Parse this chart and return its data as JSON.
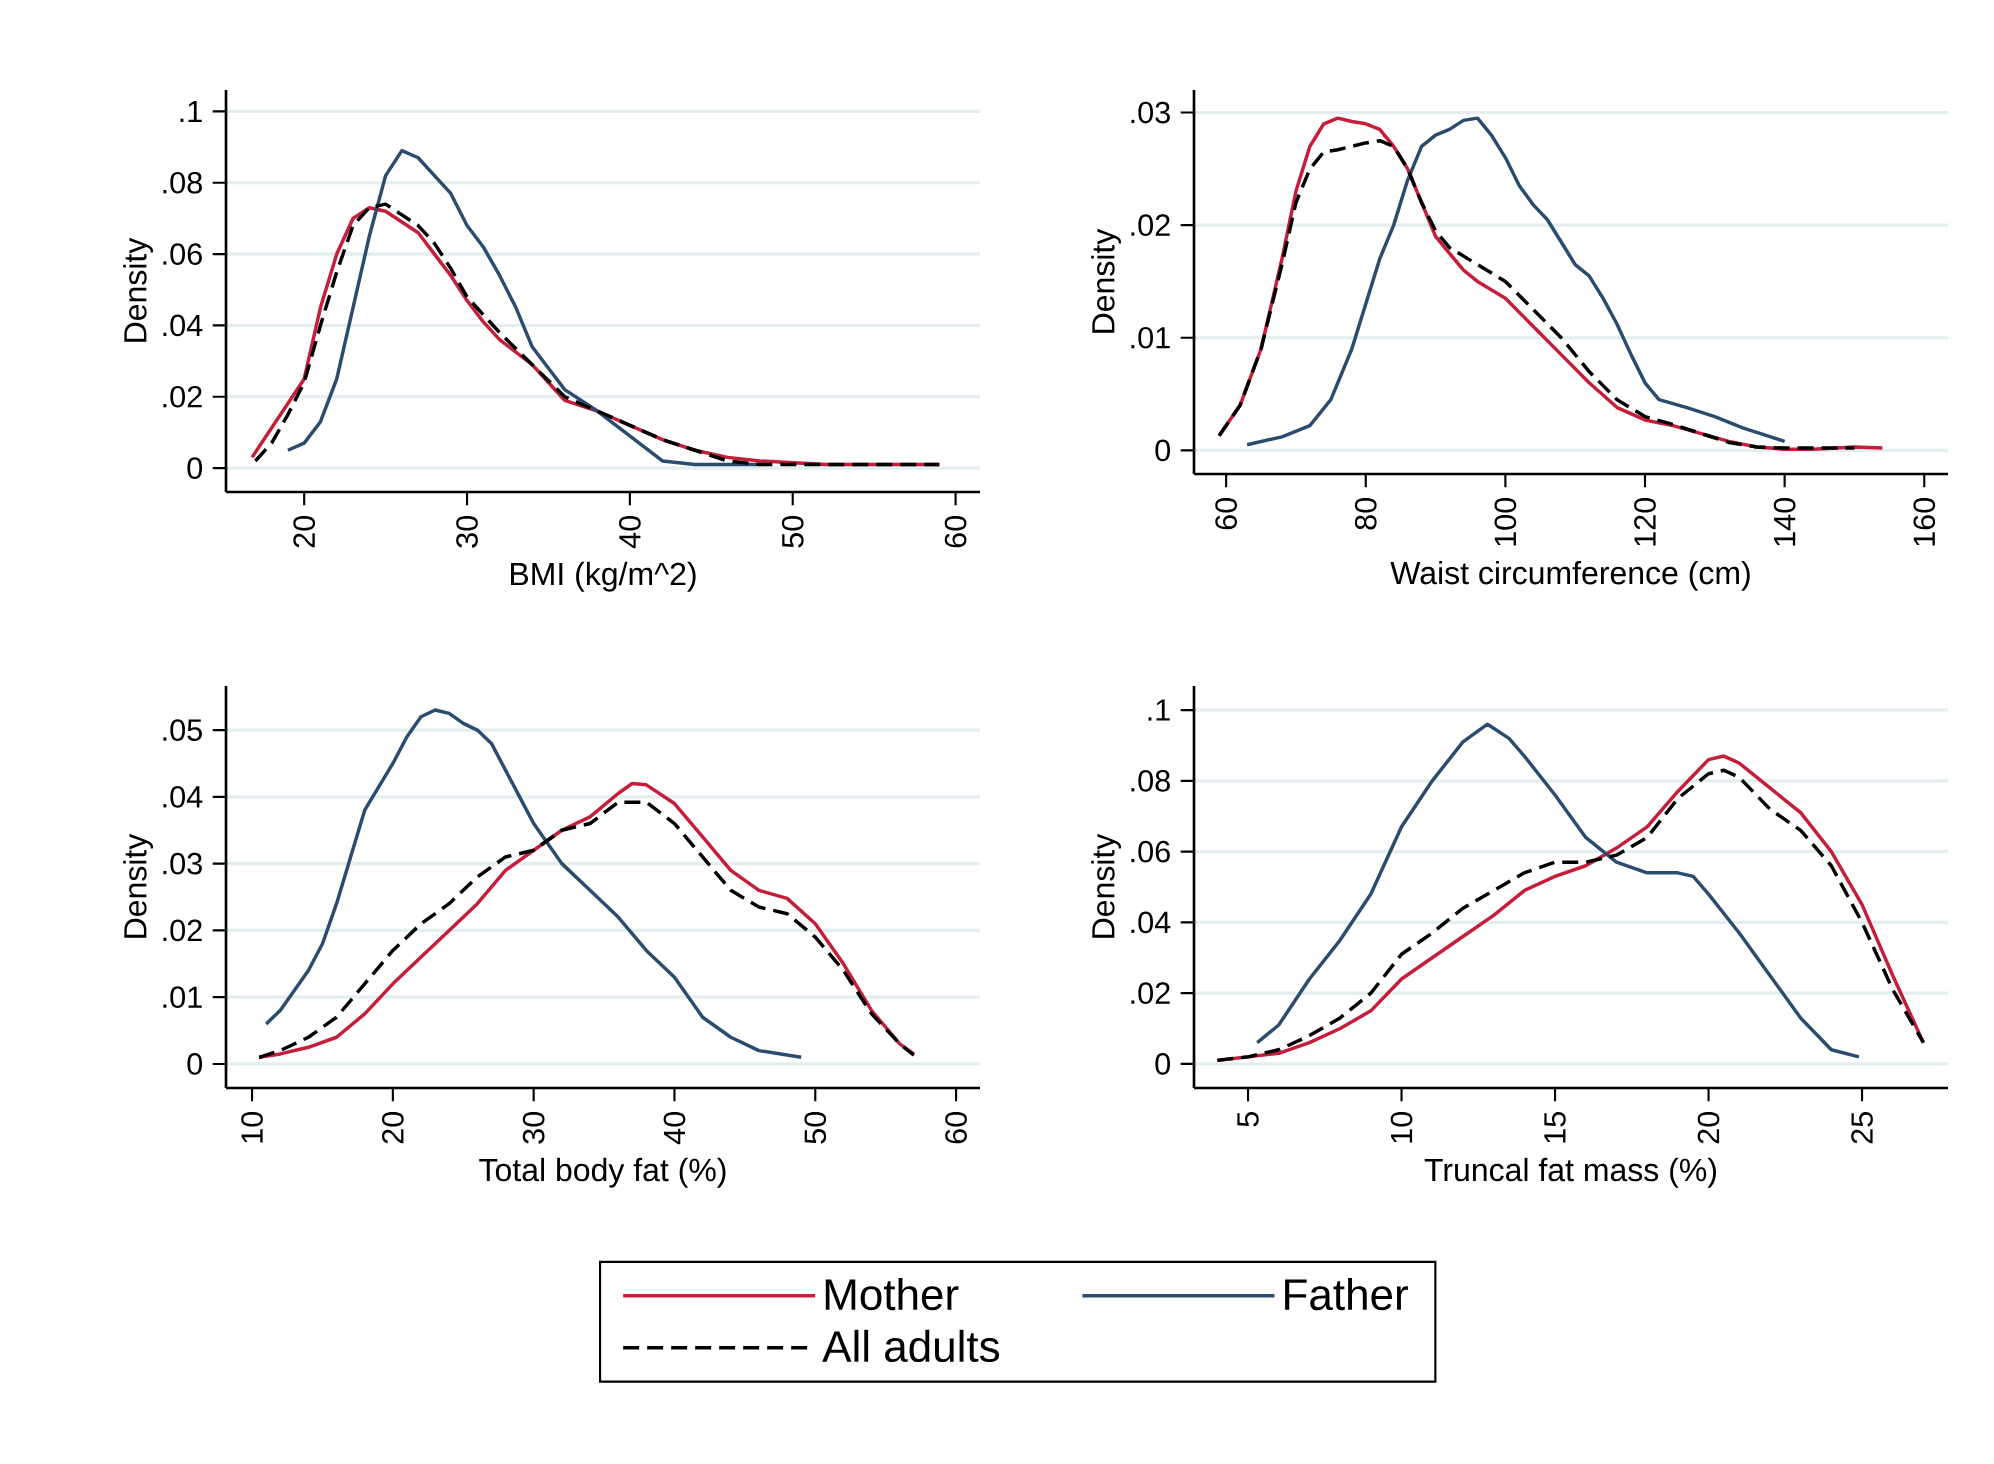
{
  "chart_data": [
    {
      "type": "line",
      "xlabel": "BMI (kg/m^2)",
      "ylabel": "Density",
      "xlim": [
        15.2,
        61.5
      ],
      "ylim": [
        -0.0067,
        0.106
      ],
      "xticks": [
        20,
        30,
        40,
        50,
        60
      ],
      "yticks": [
        0,
        {
          "value": 0.02,
          "label": ".02"
        },
        {
          "value": 0.04,
          "label": ".04"
        },
        {
          "value": 0.06,
          "label": ".06"
        },
        {
          "value": 0.08,
          "label": ".08"
        },
        {
          "value": 0.1,
          "label": ".1"
        }
      ],
      "grid": "y",
      "series": [
        {
          "color": "#c41e3a",
          "line_style": "solid",
          "x": [
            16.8,
            20,
            21,
            22,
            23,
            24,
            25,
            26,
            27,
            28,
            29,
            30,
            31,
            32,
            34,
            35,
            36,
            38,
            40,
            42,
            44,
            46,
            48,
            52,
            56,
            59
          ],
          "values": [
            0.003,
            0.025,
            0.045,
            0.06,
            0.07,
            0.073,
            0.072,
            0.069,
            0.066,
            0.06,
            0.054,
            0.047,
            0.041,
            0.036,
            0.029,
            0.024,
            0.019,
            0.016,
            0.012,
            0.008,
            0.005,
            0.003,
            0.002,
            0.001,
            0.001,
            0.001
          ]
        },
        {
          "color": "#2b4c6f",
          "line_style": "solid",
          "x": [
            19,
            20,
            21,
            22,
            23,
            24,
            25,
            26,
            27,
            28,
            29,
            30,
            31,
            32,
            33,
            34,
            35,
            36,
            38,
            40,
            42,
            44,
            46,
            48
          ],
          "values": [
            0.005,
            0.007,
            0.013,
            0.025,
            0.045,
            0.065,
            0.082,
            0.089,
            0.087,
            0.082,
            0.077,
            0.068,
            0.062,
            0.054,
            0.045,
            0.034,
            0.028,
            0.022,
            0.016,
            0.009,
            0.002,
            0.001,
            0.001,
            0.001
          ]
        },
        {
          "color": "#000000",
          "line_style": "dashed",
          "x": [
            17,
            18,
            19,
            20,
            21,
            22,
            23,
            24,
            25,
            26,
            27,
            28,
            29,
            30,
            32,
            34,
            36,
            38,
            40,
            42,
            44,
            46,
            48,
            52,
            56,
            59
          ],
          "values": [
            0.002,
            0.007,
            0.015,
            0.024,
            0.04,
            0.055,
            0.068,
            0.073,
            0.074,
            0.071,
            0.068,
            0.063,
            0.056,
            0.048,
            0.038,
            0.029,
            0.02,
            0.016,
            0.012,
            0.008,
            0.005,
            0.002,
            0.001,
            0.001,
            0.001,
            0.001
          ]
        }
      ]
    },
    {
      "type": "line",
      "xlabel": "Waist circumference (cm)",
      "ylabel": "Density",
      "xlim": [
        55.4,
        163.4
      ],
      "ylim": [
        -0.0021,
        0.032
      ],
      "xticks": [
        60,
        80,
        100,
        120,
        140,
        160
      ],
      "yticks": [
        0,
        {
          "value": 0.01,
          "label": ".01"
        },
        {
          "value": 0.02,
          "label": ".02"
        },
        {
          "value": 0.03,
          "label": ".03"
        }
      ],
      "grid": "y",
      "series": [
        {
          "color": "#c41e3a",
          "line_style": "solid",
          "x": [
            59,
            62,
            65,
            68,
            70,
            72,
            74,
            76,
            78,
            80,
            82,
            84,
            86,
            88,
            90,
            92,
            94,
            96,
            100,
            104,
            108,
            112,
            116,
            120,
            124,
            128,
            132,
            136,
            140,
            144,
            150,
            154
          ],
          "values": [
            0.0013,
            0.004,
            0.009,
            0.017,
            0.023,
            0.027,
            0.029,
            0.0295,
            0.0292,
            0.029,
            0.0285,
            0.027,
            0.025,
            0.022,
            0.019,
            0.0175,
            0.016,
            0.015,
            0.0135,
            0.011,
            0.0085,
            0.006,
            0.0038,
            0.0027,
            0.0022,
            0.0015,
            0.0008,
            0.0003,
            0.0001,
            0.0001,
            0.0003,
            0.0002
          ]
        },
        {
          "color": "#2b4c6f",
          "line_style": "solid",
          "x": [
            63,
            68,
            72,
            75,
            78,
            80,
            82,
            84,
            86,
            88,
            90,
            92,
            94,
            96,
            98,
            100,
            102,
            104,
            106,
            108,
            110,
            112,
            114,
            116,
            118,
            120,
            122,
            126,
            130,
            134,
            138,
            140
          ],
          "values": [
            0.0005,
            0.0012,
            0.0022,
            0.0045,
            0.009,
            0.013,
            0.017,
            0.02,
            0.024,
            0.027,
            0.028,
            0.0285,
            0.0293,
            0.0295,
            0.028,
            0.026,
            0.0235,
            0.0218,
            0.0205,
            0.0185,
            0.0165,
            0.0155,
            0.0135,
            0.0112,
            0.0085,
            0.006,
            0.0045,
            0.0038,
            0.003,
            0.002,
            0.0012,
            0.0008
          ]
        },
        {
          "color": "#000000",
          "line_style": "dashed",
          "x": [
            59,
            62,
            65,
            68,
            70,
            72,
            74,
            76,
            78,
            80,
            82,
            84,
            86,
            88,
            90,
            92,
            96,
            100,
            104,
            108,
            112,
            116,
            120,
            124,
            128,
            132,
            136,
            140,
            150
          ],
          "values": [
            0.0013,
            0.004,
            0.009,
            0.0165,
            0.022,
            0.025,
            0.0265,
            0.0267,
            0.027,
            0.0273,
            0.0275,
            0.027,
            0.025,
            0.022,
            0.0195,
            0.018,
            0.0165,
            0.015,
            0.0125,
            0.01,
            0.007,
            0.0045,
            0.003,
            0.0023,
            0.0015,
            0.0007,
            0.0003,
            0.0002,
            0.0002
          ]
        }
      ]
    },
    {
      "type": "line",
      "xlabel": "Total body fat (%)",
      "ylabel": "Density",
      "xlim": [
        8.15,
        61.7
      ],
      "ylim": [
        -0.0036,
        0.0566
      ],
      "xticks": [
        10,
        20,
        30,
        40,
        50,
        60
      ],
      "yticks": [
        0,
        {
          "value": 0.01,
          "label": ".01"
        },
        {
          "value": 0.02,
          "label": ".02"
        },
        {
          "value": 0.03,
          "label": ".03"
        },
        {
          "value": 0.04,
          "label": ".04"
        },
        {
          "value": 0.05,
          "label": ".05"
        }
      ],
      "grid": "y",
      "legend": "bottom",
      "series": [
        {
          "name": "Mother",
          "color": "#c41e3a",
          "line_style": "solid",
          "x": [
            10.5,
            12,
            14,
            16,
            18,
            20,
            22,
            24,
            26,
            28,
            30,
            32,
            34,
            36,
            37,
            38,
            40,
            42,
            44,
            46,
            48,
            50,
            52,
            54,
            56,
            57
          ],
          "values": [
            0.001,
            0.0015,
            0.0025,
            0.004,
            0.0075,
            0.012,
            0.016,
            0.02,
            0.024,
            0.029,
            0.032,
            0.035,
            0.037,
            0.0405,
            0.042,
            0.0418,
            0.039,
            0.034,
            0.029,
            0.026,
            0.0248,
            0.021,
            0.015,
            0.008,
            0.003,
            0.0015
          ]
        },
        {
          "name": "Father",
          "color": "#2b4c6f",
          "line_style": "solid",
          "x": [
            11,
            12,
            14,
            15,
            16,
            18,
            20,
            21,
            22,
            23,
            24,
            25,
            26,
            27,
            28,
            29,
            30,
            31,
            32,
            34,
            36,
            38,
            40,
            42,
            44,
            46,
            49
          ],
          "values": [
            0.006,
            0.008,
            0.014,
            0.018,
            0.024,
            0.038,
            0.045,
            0.049,
            0.052,
            0.053,
            0.0525,
            0.051,
            0.05,
            0.048,
            0.044,
            0.04,
            0.036,
            0.033,
            0.03,
            0.026,
            0.022,
            0.017,
            0.013,
            0.007,
            0.004,
            0.002,
            0.001
          ]
        },
        {
          "name": "All adults",
          "color": "#000000",
          "line_style": "dashed",
          "x": [
            10.5,
            12,
            14,
            16,
            18,
            20,
            22,
            24,
            26,
            28,
            30,
            32,
            34,
            36,
            38,
            40,
            42,
            44,
            46,
            48,
            50,
            52,
            54,
            56,
            57
          ],
          "values": [
            0.001,
            0.002,
            0.004,
            0.007,
            0.012,
            0.017,
            0.021,
            0.024,
            0.028,
            0.031,
            0.032,
            0.035,
            0.036,
            0.0392,
            0.0392,
            0.036,
            0.031,
            0.026,
            0.0235,
            0.0225,
            0.019,
            0.014,
            0.0075,
            0.003,
            0.0013
          ]
        }
      ]
    },
    {
      "type": "line",
      "xlabel": "Truncal fat mass (%)",
      "ylabel": "Density",
      "xlim": [
        3.24,
        27.8
      ],
      "ylim": [
        -0.0068,
        0.1068
      ],
      "xticks": [
        5,
        10,
        15,
        20,
        25
      ],
      "yticks": [
        0,
        {
          "value": 0.02,
          "label": ".02"
        },
        {
          "value": 0.04,
          "label": ".04"
        },
        {
          "value": 0.06,
          "label": ".06"
        },
        {
          "value": 0.08,
          "label": ".08"
        },
        {
          "value": 0.1,
          "label": ".1"
        }
      ],
      "grid": "y",
      "series": [
        {
          "color": "#c41e3a",
          "line_style": "solid",
          "x": [
            4,
            5,
            6,
            7,
            8,
            9,
            10,
            11,
            12,
            13,
            14,
            15,
            16,
            17,
            18,
            19,
            20,
            20.5,
            21,
            22,
            23,
            24,
            25,
            26,
            27
          ],
          "values": [
            0.001,
            0.002,
            0.003,
            0.006,
            0.01,
            0.015,
            0.024,
            0.03,
            0.036,
            0.042,
            0.049,
            0.053,
            0.056,
            0.061,
            0.067,
            0.077,
            0.086,
            0.087,
            0.085,
            0.078,
            0.071,
            0.06,
            0.045,
            0.025,
            0.006
          ]
        },
        {
          "color": "#2b4c6f",
          "line_style": "solid",
          "x": [
            5.3,
            6,
            7,
            8,
            9,
            10,
            11,
            12,
            12.8,
            13.5,
            14,
            15,
            16,
            17,
            18,
            19,
            19.5,
            20,
            21,
            22,
            23,
            24,
            24.9
          ],
          "values": [
            0.006,
            0.011,
            0.024,
            0.035,
            0.048,
            0.067,
            0.08,
            0.091,
            0.096,
            0.092,
            0.087,
            0.076,
            0.064,
            0.057,
            0.054,
            0.054,
            0.053,
            0.048,
            0.037,
            0.025,
            0.013,
            0.004,
            0.002
          ]
        },
        {
          "color": "#000000",
          "line_style": "dashed",
          "x": [
            4,
            5,
            6,
            7,
            8,
            9,
            10,
            11,
            12,
            13,
            14,
            15,
            16,
            17,
            18,
            19,
            20,
            20.5,
            21,
            22,
            23,
            24,
            25,
            26,
            27
          ],
          "values": [
            0.001,
            0.002,
            0.004,
            0.008,
            0.013,
            0.02,
            0.031,
            0.037,
            0.044,
            0.049,
            0.054,
            0.057,
            0.057,
            0.059,
            0.064,
            0.075,
            0.082,
            0.083,
            0.081,
            0.072,
            0.066,
            0.056,
            0.04,
            0.021,
            0.006
          ]
        }
      ]
    }
  ]
}
